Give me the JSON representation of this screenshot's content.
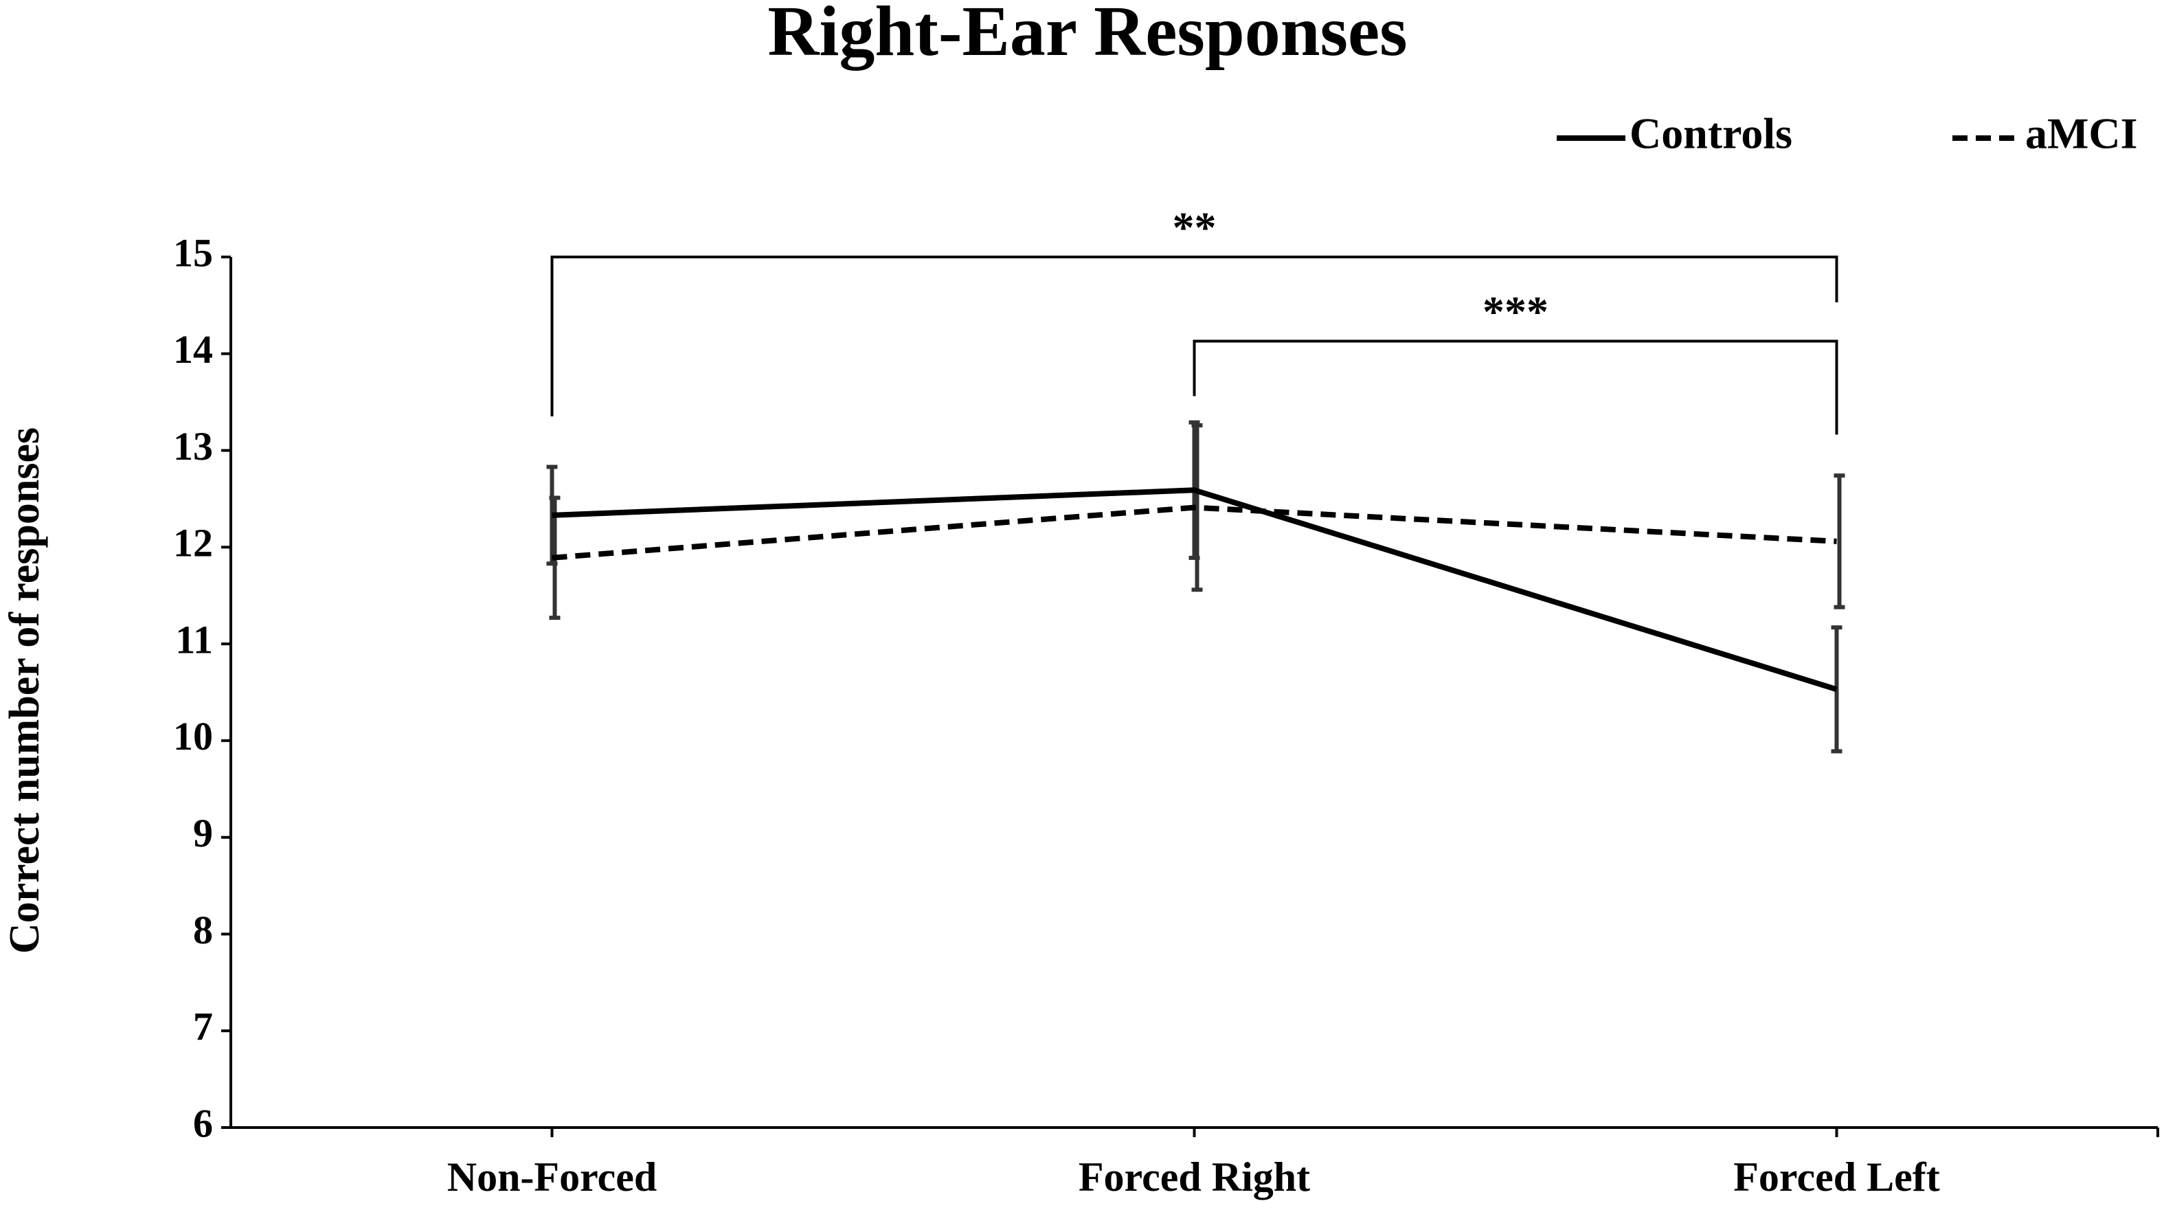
{
  "chart_data": {
    "type": "line",
    "title": "Right-Ear Responses",
    "y_label": "Correct number of responses",
    "categories": [
      "Non-Forced",
      "Forced Right",
      "Forced Left"
    ],
    "series": [
      {
        "name": "Controls",
        "color": "#000000",
        "line_style": "solid",
        "values": [
          12.33,
          12.59,
          10.53
        ],
        "errors": [
          0.5,
          0.7,
          0.64
        ]
      },
      {
        "name": "aMCI",
        "color": "#000000",
        "line_style": "dashed",
        "values": [
          11.89,
          12.41,
          12.06
        ],
        "errors": [
          0.62,
          0.85,
          0.68
        ]
      }
    ],
    "ylim": [
      6,
      15
    ],
    "yticks": [
      6,
      7,
      8,
      9,
      10,
      11,
      12,
      13,
      14,
      15
    ],
    "grid": false,
    "legend": "top-right",
    "annotations": [
      {
        "text": "**",
        "y": 15
      },
      {
        "text": "***",
        "y": 14.13
      }
    ]
  }
}
